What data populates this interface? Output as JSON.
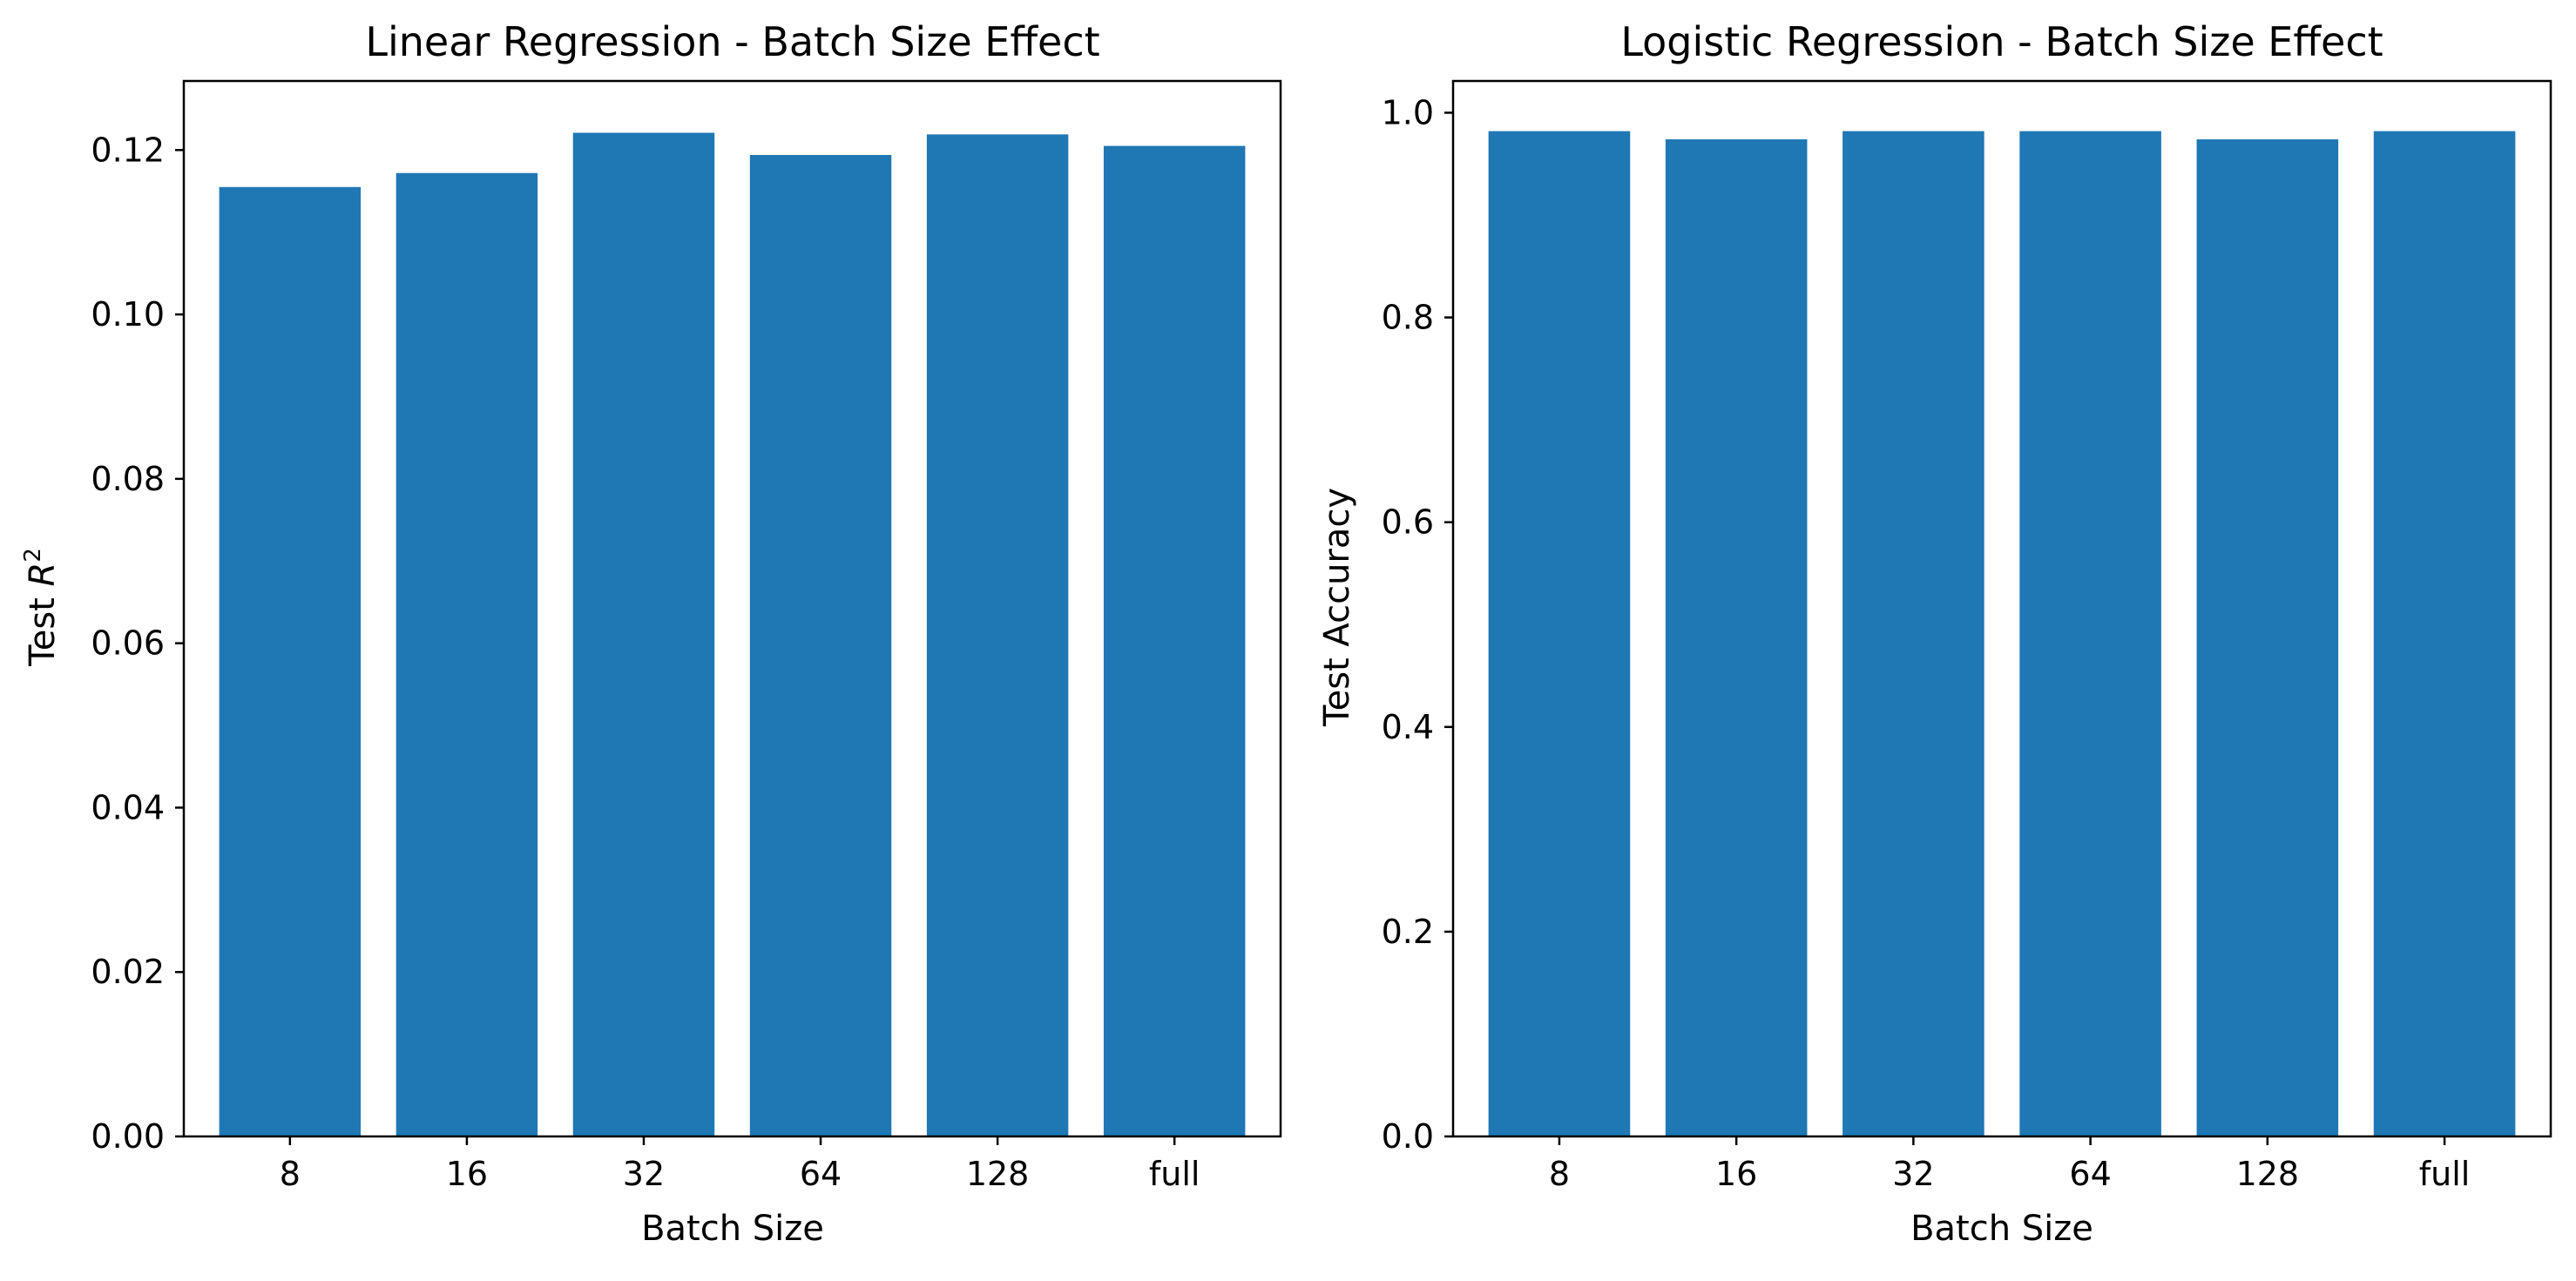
{
  "chart_data": [
    {
      "type": "bar",
      "title": "Linear Regression - Batch Size Effect",
      "xlabel": "Batch Size",
      "ylabel_prefix": "Test ",
      "ylabel_var": "R",
      "ylabel_sup": "2",
      "categories": [
        "8",
        "16",
        "32",
        "64",
        "128",
        "full"
      ],
      "values": [
        0.1155,
        0.1172,
        0.1221,
        0.1194,
        0.1219,
        0.1205
      ],
      "ylim": [
        0,
        0.1284
      ],
      "yticks": [
        0.0,
        0.02,
        0.04,
        0.06,
        0.08,
        0.1,
        0.12
      ],
      "ytick_labels": [
        "0.00",
        "0.02",
        "0.04",
        "0.06",
        "0.08",
        "0.10",
        "0.12"
      ],
      "grid": false,
      "bar_color": "#1f77b4"
    },
    {
      "type": "bar",
      "title": "Logistic Regression - Batch Size Effect",
      "xlabel": "Batch Size",
      "ylabel": "Test Accuracy",
      "categories": [
        "8",
        "16",
        "32",
        "64",
        "128",
        "full"
      ],
      "values": [
        0.982,
        0.974,
        0.982,
        0.982,
        0.974,
        0.982
      ],
      "ylim": [
        0,
        1.031
      ],
      "yticks": [
        0.0,
        0.2,
        0.4,
        0.6,
        0.8,
        1.0
      ],
      "ytick_labels": [
        "0.0",
        "0.2",
        "0.4",
        "0.6",
        "0.8",
        "1.0"
      ],
      "grid": false,
      "bar_color": "#1f77b4"
    }
  ]
}
